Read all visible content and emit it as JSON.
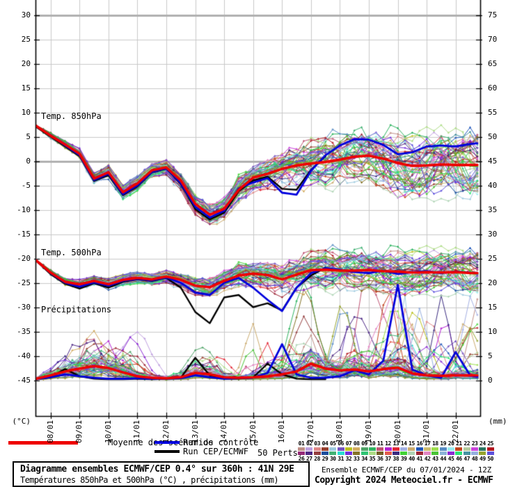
{
  "title_box": {
    "line1": "Diagramme ensembles ECMWF/CEP 0.4° sur 360h : 41N 29E",
    "line2": "Températures 850hPa et 500hPa (°C) , précipitations (mm)"
  },
  "footer": {
    "run_info": "Ensemble ECMWF/CEP du 07/01/2024 - 12Z",
    "copyright": "Copyright 2024 Meteociel.fr - ECMWF"
  },
  "legend": {
    "mean_label": "Moyenne des scénarios",
    "control_label": "Run de contrôle",
    "deterministic_label": "Run CEP/ECMWF",
    "perts_label": "50 Perts.",
    "mean_color": "#ee0000",
    "control_color": "#0000dd",
    "deterministic_color": "#000000"
  },
  "panel_labels": {
    "t850": "Temp. 850hPa",
    "t500": "Temp. 500hPa",
    "precip": "Précipitations"
  },
  "chart_data": {
    "type": "line",
    "title": "Diagramme ensembles ECMWF/CEP 0.4° sur 360h : 41N 29E",
    "subtitle": "Températures 850hPa et 500hPa (°C) , précipitations (mm)",
    "grid": true,
    "y_left": {
      "unit": "(°C)",
      "tick_labels": [
        "30",
        "25",
        "20",
        "15",
        "10",
        "5",
        "0",
        "-5",
        "-10",
        "-15",
        "-20",
        "-25",
        "-30",
        "-35",
        "-40",
        "-45"
      ],
      "tick_values": [
        30,
        25,
        20,
        15,
        10,
        5,
        0,
        -5,
        -10,
        -15,
        -20,
        -25,
        -30,
        -35,
        -40,
        -45
      ],
      "emphasized_values": [
        30,
        0
      ]
    },
    "y_right": {
      "unit": "(mm)",
      "tick_labels": [
        "75",
        "70",
        "65",
        "60",
        "55",
        "50",
        "45",
        "40",
        "35",
        "30",
        "25",
        "20",
        "15",
        "10",
        "5",
        "0"
      ],
      "tick_values": [
        75,
        70,
        65,
        60,
        55,
        50,
        45,
        40,
        35,
        30,
        25,
        20,
        15,
        10,
        5,
        0
      ]
    },
    "x_axis": {
      "date_labels": [
        "08/01",
        "09/01",
        "10/01",
        "11/01",
        "12/01",
        "13/01",
        "14/01",
        "15/01",
        "16/01",
        "17/01",
        "18/01",
        "19/01",
        "20/01",
        "21/01",
        "22/01"
      ],
      "t_days_from_run": [
        0.5,
        1.5,
        2.5,
        3.5,
        4.5,
        5.5,
        6.5,
        7.5,
        8.5,
        9.5,
        10.5,
        11.5,
        12.5,
        13.5,
        14.5
      ],
      "run_start": "07/01/2024 12Z",
      "t_max_days": 15.35
    },
    "sample_step_days": 0.5,
    "series": {
      "t850_mean": [
        7.2,
        5.2,
        3.4,
        1.5,
        -3.6,
        -2.3,
        -6.4,
        -4.6,
        -1.9,
        -1.3,
        -4.0,
        -8.8,
        -11.0,
        -9.8,
        -5.9,
        -3.4,
        -2.6,
        -1.6,
        -0.9,
        -0.5,
        -0.2,
        0.3,
        0.9,
        1.1,
        0.5,
        -0.4,
        -1.0,
        -0.9,
        -0.7,
        -0.8,
        -0.8,
        -0.8
      ],
      "t850_control": [
        7.2,
        5.3,
        3.2,
        1.2,
        -3.9,
        -2.6,
        -6.8,
        -5.0,
        -2.2,
        -1.5,
        -4.5,
        -9.4,
        -11.6,
        -10.2,
        -5.6,
        -4.4,
        -3.5,
        -6.5,
        -6.9,
        -2.0,
        1.2,
        3.2,
        4.5,
        4.4,
        3.3,
        1.4,
        1.8,
        3.0,
        3.2,
        3.0,
        3.5,
        3.8
      ],
      "t850_det": [
        7.0,
        5.0,
        3.0,
        1.0,
        -4.1,
        -2.9,
        -7.0,
        -5.2,
        -2.3,
        -1.6,
        -4.7,
        -9.9,
        -12.0,
        -10.6,
        -6.2,
        -4.0,
        -3.2,
        -5.7,
        -5.9,
        -1.8,
        1.0
      ],
      "t500_mean": [
        -20.4,
        -22.9,
        -24.8,
        -25.3,
        -24.6,
        -25.3,
        -24.4,
        -24.0,
        -24.3,
        -23.7,
        -24.4,
        -25.6,
        -25.9,
        -24.6,
        -23.5,
        -23.1,
        -23.4,
        -24.3,
        -23.3,
        -22.4,
        -22.3,
        -22.5,
        -22.5,
        -22.4,
        -22.6,
        -22.7,
        -22.9,
        -22.8,
        -22.9,
        -22.8,
        -23.0,
        -23.0
      ],
      "t500_control": [
        -20.4,
        -23.0,
        -25.0,
        -25.8,
        -24.9,
        -25.6,
        -24.6,
        -24.2,
        -24.5,
        -23.9,
        -25.0,
        -27.0,
        -27.5,
        -25.0,
        -24.0,
        -26.0,
        -28.5,
        -30.8,
        -26.0,
        -23.0,
        -22.0,
        -22.3,
        -22.8,
        -23.0,
        -22.5,
        -23.2,
        -22.8,
        -22.6,
        -23.0,
        -22.7,
        -22.9,
        -23.0
      ],
      "t500_det": [
        -20.5,
        -23.2,
        -25.2,
        -26.2,
        -25.1,
        -26.0,
        -24.8,
        -24.3,
        -24.6,
        -24.0,
        -26.0,
        -31.0,
        -33.3,
        -28.0,
        -27.5,
        -30.0,
        -29.2,
        -30.7,
        -26.0,
        -23.5,
        -21.9
      ],
      "precip_mean": [
        0.3,
        1.0,
        1.8,
        2.4,
        2.9,
        2.5,
        1.6,
        0.8,
        0.5,
        0.4,
        0.6,
        1.5,
        1.2,
        0.6,
        0.5,
        0.6,
        0.8,
        1.2,
        1.8,
        3.4,
        2.4,
        2.0,
        2.2,
        1.8,
        2.3,
        2.6,
        1.4,
        1.0,
        0.9,
        1.0,
        1.0,
        1.0
      ],
      "precip_control": [
        0.2,
        0.6,
        1.2,
        0.8,
        0.5,
        0.3,
        0.3,
        0.4,
        0.3,
        0.3,
        0.4,
        1.0,
        0.6,
        0.3,
        0.4,
        0.5,
        1.5,
        7.4,
        1.2,
        0.5,
        0.5,
        0.8,
        2.0,
        1.2,
        4.0,
        19.6,
        2.2,
        1.0,
        0.5,
        5.8,
        1.0,
        0.5
      ],
      "precip_det": [
        0.2,
        0.6,
        2.3,
        0.8,
        0.3,
        0.2,
        0.2,
        0.3,
        0.2,
        0.3,
        0.5,
        4.6,
        1.0,
        0.3,
        0.3,
        0.6,
        3.4,
        1.2,
        0.3,
        0.2,
        0.2
      ]
    },
    "deterministic_end_day": 10,
    "ensemble": {
      "member_count": 50,
      "seed": 11,
      "spread_t850": [
        0.15,
        0.7,
        0.9,
        1.1,
        1.3,
        1.5,
        1.7,
        1.8,
        1.8,
        1.8,
        2.0,
        2.3,
        2.5,
        2.8,
        3.2,
        3.6,
        4.0,
        4.5,
        5.0,
        5.4,
        5.7,
        6.0,
        6.2,
        6.5,
        6.8,
        7.0,
        7.2,
        7.3,
        7.4,
        7.5,
        7.5,
        7.5
      ],
      "spread_t500": [
        0.15,
        0.6,
        0.8,
        1.0,
        1.1,
        1.2,
        1.3,
        1.4,
        1.5,
        1.5,
        1.7,
        2.0,
        2.2,
        2.5,
        2.8,
        3.2,
        3.6,
        4.0,
        4.2,
        4.4,
        4.6,
        4.8,
        5.0,
        5.0,
        5.0,
        5.0,
        5.0,
        5.0,
        5.0,
        5.0,
        5.0,
        5.0
      ],
      "precip_spike_windows": [
        [
          0.8,
          3.6
        ],
        [
          5.2,
          6.6
        ],
        [
          7.2,
          15.3
        ]
      ],
      "precip_spike_max_amp": [
        9,
        6,
        21
      ],
      "precip_spike_window_prob": [
        0.3,
        0.15,
        0.55
      ],
      "member_numbers": [
        "01",
        "02",
        "03",
        "04",
        "05",
        "06",
        "07",
        "08",
        "09",
        "10",
        "11",
        "12",
        "13",
        "14",
        "15",
        "16",
        "17",
        "18",
        "19",
        "20",
        "21",
        "22",
        "23",
        "24",
        "25",
        "26",
        "27",
        "28",
        "29",
        "30",
        "31",
        "32",
        "33",
        "34",
        "35",
        "36",
        "37",
        "38",
        "39",
        "40",
        "41",
        "42",
        "43",
        "44",
        "45",
        "46",
        "47",
        "48",
        "49",
        "50"
      ],
      "member_colors": [
        "#c09088",
        "#c0a0e0",
        "#e08888",
        "#98402f",
        "#a0cce0",
        "#7652c0",
        "#bcc220",
        "#d4ac60",
        "#4fa468",
        "#2eb460",
        "#c05474",
        "#b422d4",
        "#e42634",
        "#a4b0e4",
        "#ccac70",
        "#2058bc",
        "#ccbc70",
        "#9ede4e",
        "#588cc4",
        "#99eef0",
        "#c44420",
        "#b4cc9e",
        "#cc44dd",
        "#2a7560",
        "#b41820",
        "#962a78",
        "#4f2a86",
        "#964040",
        "#1c4f9e",
        "#42b274",
        "#2adfd0",
        "#7630dd",
        "#857428",
        "#30c474",
        "#aedd86",
        "#756028",
        "#e45e50",
        "#3a2a80",
        "#42d436",
        "#aed4b4",
        "#9e2636",
        "#e486c4",
        "#4ac436",
        "#8cb4d8",
        "#8c2ad4",
        "#2ae474",
        "#4694a2",
        "#96b0e0",
        "#96a42e",
        "#5e52dd"
      ]
    }
  }
}
